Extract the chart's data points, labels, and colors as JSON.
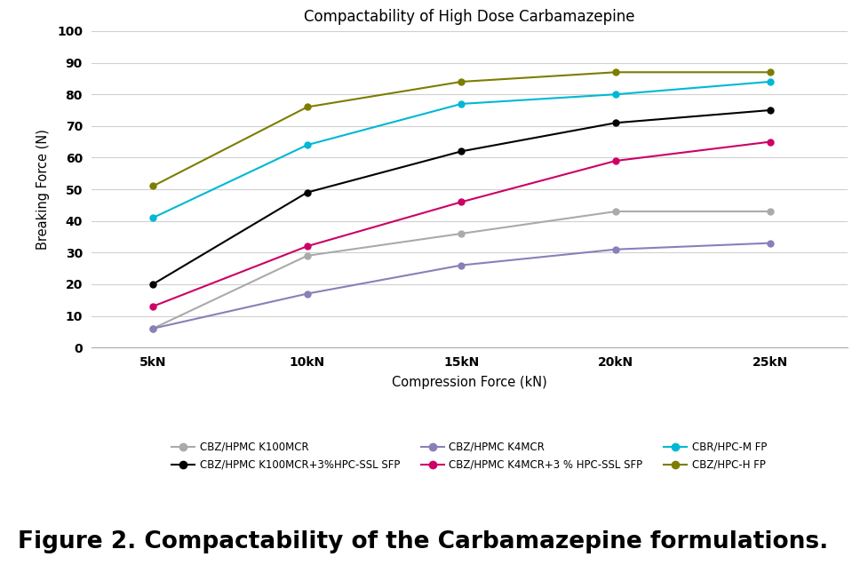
{
  "title": "Compactability of High Dose Carbamazepine",
  "xlabel": "Compression Force (kN)",
  "ylabel": "Breaking Force (N)",
  "x_labels": [
    "5kN",
    "10kN",
    "15kN",
    "20kN",
    "25kN"
  ],
  "x_values": [
    5,
    10,
    15,
    20,
    25
  ],
  "ylim": [
    0,
    100
  ],
  "yticks": [
    0,
    10,
    20,
    30,
    40,
    50,
    60,
    70,
    80,
    90,
    100
  ],
  "series": [
    {
      "label": "CBZ/HPMC K100MCR",
      "color": "#aaaaaa",
      "values": [
        6,
        29,
        36,
        43,
        43
      ],
      "marker": "o",
      "linewidth": 1.5
    },
    {
      "label": "CBZ/HPMC K100MCR+3%HPC-SSL SFP",
      "color": "#000000",
      "values": [
        20,
        49,
        62,
        71,
        75
      ],
      "marker": "o",
      "linewidth": 1.5
    },
    {
      "label": "CBZ/HPMC K4MCR",
      "color": "#8b7fb8",
      "values": [
        6,
        17,
        26,
        31,
        33
      ],
      "marker": "o",
      "linewidth": 1.5
    },
    {
      "label": "CBZ/HPMC K4MCR+3 % HPC-SSL SFP",
      "color": "#cc0066",
      "values": [
        13,
        32,
        46,
        59,
        65
      ],
      "marker": "o",
      "linewidth": 1.5
    },
    {
      "label": "CBR/HPC-M FP",
      "color": "#00b8d4",
      "values": [
        41,
        64,
        77,
        80,
        84
      ],
      "marker": "o",
      "linewidth": 1.5
    },
    {
      "label": "CBZ/HPC-H FP",
      "color": "#7d7d00",
      "values": [
        51,
        76,
        84,
        87,
        87
      ],
      "marker": "o",
      "linewidth": 1.5
    }
  ],
  "legend_order": [
    0,
    1,
    2,
    3,
    4,
    5
  ],
  "caption": "Figure 2. Compactability of the Carbamazepine formulations.",
  "background_color": "#ffffff",
  "grid_color": "#d0d0d0",
  "title_fontsize": 12,
  "axis_label_fontsize": 10.5,
  "tick_fontsize": 10,
  "legend_fontsize": 8.5,
  "caption_fontsize": 19
}
